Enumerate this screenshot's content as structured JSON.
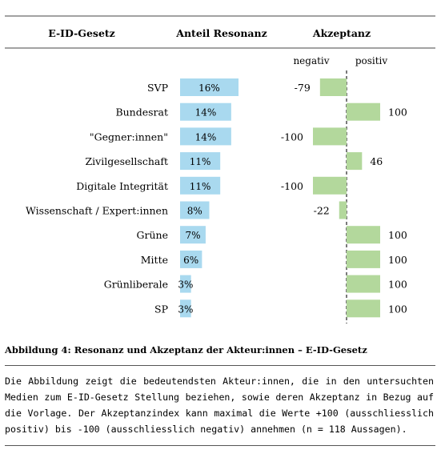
{
  "chart_data": {
    "type": "bar",
    "columns": {
      "category": "E-ID-Gesetz",
      "resonance": "Anteil Resonanz",
      "acceptance": "Akzeptanz"
    },
    "acceptance_labels": {
      "negative": "negativ",
      "positive": "positiv"
    },
    "categories": [
      "SVP",
      "Bundesrat",
      "\"Gegner:innen\"",
      "Zivilgesellschaft",
      "Digitale Integrität",
      "Wissenschaft / Expert:innen",
      "Grüne",
      "Mitte",
      "Grünliberale",
      "SP"
    ],
    "series": [
      {
        "name": "Anteil Resonanz",
        "values": [
          16,
          14,
          14,
          11,
          11,
          8,
          7,
          6,
          3,
          3
        ],
        "labels": [
          "16%",
          "14%",
          "14%",
          "11%",
          "11%",
          "8%",
          "7%",
          "6%",
          "3%",
          "3%"
        ],
        "color": "#a9d9ef"
      },
      {
        "name": "Akzeptanz",
        "values": [
          -79,
          100,
          -100,
          46,
          -100,
          -22,
          100,
          100,
          100,
          100
        ],
        "labels": [
          "-79",
          "100",
          "-100",
          "46",
          "-100",
          "-22",
          "100",
          "100",
          "100",
          "100"
        ],
        "color": "#b3d89c"
      }
    ],
    "acceptance_range": [
      -100,
      100
    ]
  },
  "caption": {
    "title": "Abbildung 4: Resonanz und Akzeptanz der Akteur:innen – E-ID-Gesetz",
    "text": "Die Abbildung zeigt die bedeutendsten Akteur:innen, die in den untersuchten Medien zum E-ID-Gesetz Stellung beziehen, sowie deren Akzeptanz in Bezug auf die Vorlage. Der Akzeptanzindex kann maximal die Werte +100 (ausschliesslich positiv) bis -100 (ausschliesslich negativ) annehmen (n = 118 Aussagen)."
  }
}
